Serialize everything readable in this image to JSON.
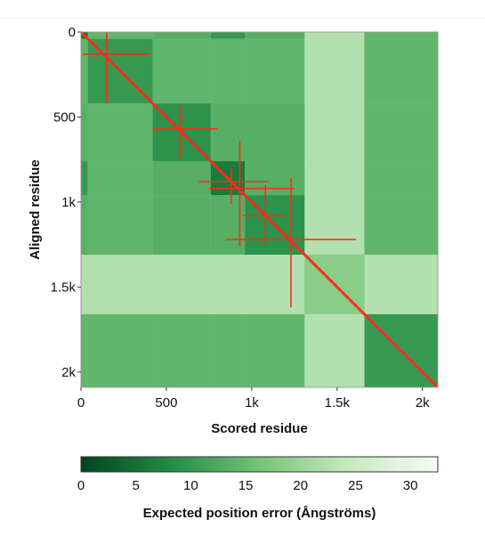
{
  "chart_data": {
    "type": "heatmap",
    "title": "",
    "xlabel": "Scored residue",
    "ylabel": "Aligned residue",
    "xlim": [
      0,
      2090
    ],
    "ylim": [
      0,
      2090
    ],
    "x_ticks": [
      0,
      500,
      1000,
      1500,
      2000
    ],
    "x_tick_labels": [
      "0",
      "500",
      "1k",
      "1.5k",
      "2k"
    ],
    "y_ticks": [
      0,
      500,
      1000,
      1500,
      2000
    ],
    "y_tick_labels": [
      "0",
      "500",
      "1k",
      "1.5k",
      "2k"
    ],
    "y_axis_inverted": true,
    "colorscale": "Greens",
    "colors": {
      "low": "#00441b",
      "mid": "#74c476",
      "high": "#f7fcf5",
      "overlay": "#ff2a1a"
    },
    "colorbar": {
      "label": "Expected position error (Ångströms)",
      "range": [
        0,
        32.5
      ],
      "ticks": [
        0,
        5,
        10,
        15,
        20,
        25,
        30
      ],
      "tick_labels": [
        "0",
        "5",
        "10",
        "15",
        "20",
        "25",
        "30"
      ]
    },
    "domain_blocks": [
      {
        "start": 0,
        "end": 40,
        "value": 4
      },
      {
        "start": 40,
        "end": 420,
        "value": 10
      },
      {
        "start": 420,
        "end": 760,
        "value": 9
      },
      {
        "start": 760,
        "end": 960,
        "value": 6
      },
      {
        "start": 960,
        "end": 1310,
        "value": 9
      },
      {
        "start": 1310,
        "end": 1660,
        "value": 18
      },
      {
        "start": 1660,
        "end": 2090,
        "value": 10
      }
    ],
    "background_value": 20,
    "error_crosses": [
      {
        "x": 150,
        "y": 130,
        "x_err": [
          10,
          400
        ],
        "y_err": [
          0,
          420
        ]
      },
      {
        "x": 580,
        "y": 570,
        "x_err": [
          420,
          800
        ],
        "y_err": [
          430,
          740
        ]
      },
      {
        "x": 880,
        "y": 880,
        "x_err": [
          690,
          1100
        ],
        "y_err": [
          800,
          1010
        ]
      },
      {
        "x": 930,
        "y": 920,
        "x_err": [
          750,
          1250
        ],
        "y_err": [
          640,
          1260
        ]
      },
      {
        "x": 1080,
        "y": 1080,
        "x_err": [
          950,
          1200
        ],
        "y_err": [
          900,
          1260
        ]
      },
      {
        "x": 1230,
        "y": 1220,
        "x_err": [
          850,
          1610
        ],
        "y_err": [
          860,
          1620
        ]
      }
    ]
  }
}
